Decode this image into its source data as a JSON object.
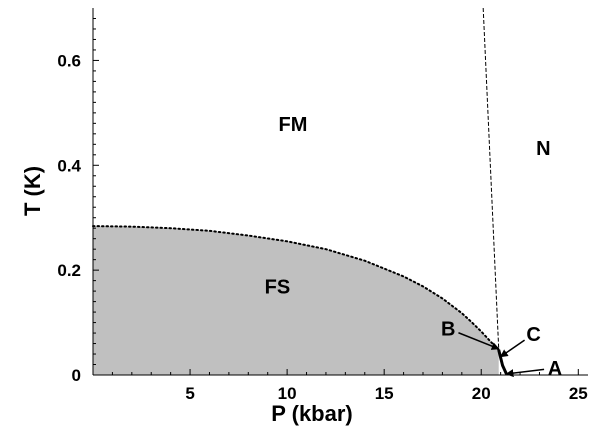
{
  "chart_data": {
    "type": "area",
    "title": "",
    "xlabel": "P (kbar)",
    "ylabel": "T (K)",
    "xlim": [
      0,
      25.5
    ],
    "ylim": [
      0,
      0.7
    ],
    "x_ticks": [
      5,
      10,
      15,
      20,
      25
    ],
    "y_ticks": [
      0,
      0.2,
      0.4,
      0.6
    ],
    "x_tick_labels": [
      "5",
      "10",
      "15",
      "20",
      "25"
    ],
    "y_tick_labels": [
      "0",
      "0.2",
      "0.4",
      "0.6"
    ],
    "grid": false,
    "legend": "none",
    "series": [
      {
        "style": "dotted-boundary-filled-gray",
        "fill_color": "#c0c0c0",
        "x": [
          0,
          2,
          4,
          6,
          8,
          10,
          12,
          14,
          16,
          17,
          18,
          19,
          19.5,
          20,
          20.5,
          20.9
        ],
        "y": [
          0.284,
          0.283,
          0.28,
          0.275,
          0.266,
          0.255,
          0.24,
          0.218,
          0.188,
          0.169,
          0.146,
          0.118,
          0.101,
          0.083,
          0.063,
          0.048
        ]
      },
      {
        "style": "dashed",
        "x": [
          20.1,
          20.9
        ],
        "y": [
          0.7,
          0.05
        ]
      },
      {
        "style": "solid",
        "x": [
          20.9,
          21.1,
          21.3
        ],
        "y": [
          0.048,
          0.018,
          0.002
        ]
      }
    ],
    "annotations": [
      {
        "text": "FM",
        "x": 10.3,
        "y": 0.465
      },
      {
        "text": "N",
        "x": 23.2,
        "y": 0.42
      },
      {
        "text": "FS",
        "x": 9.5,
        "y": 0.155
      },
      {
        "text": "B",
        "x": 18.3,
        "y": 0.075,
        "arrow_to": [
          20.9,
          0.05
        ]
      },
      {
        "text": "C",
        "x": 22.7,
        "y": 0.065,
        "arrow_to": [
          21.0,
          0.035
        ]
      },
      {
        "text": "A",
        "x": 23.8,
        "y": 0.0,
        "arrow_to": [
          21.3,
          0.002
        ]
      }
    ]
  }
}
